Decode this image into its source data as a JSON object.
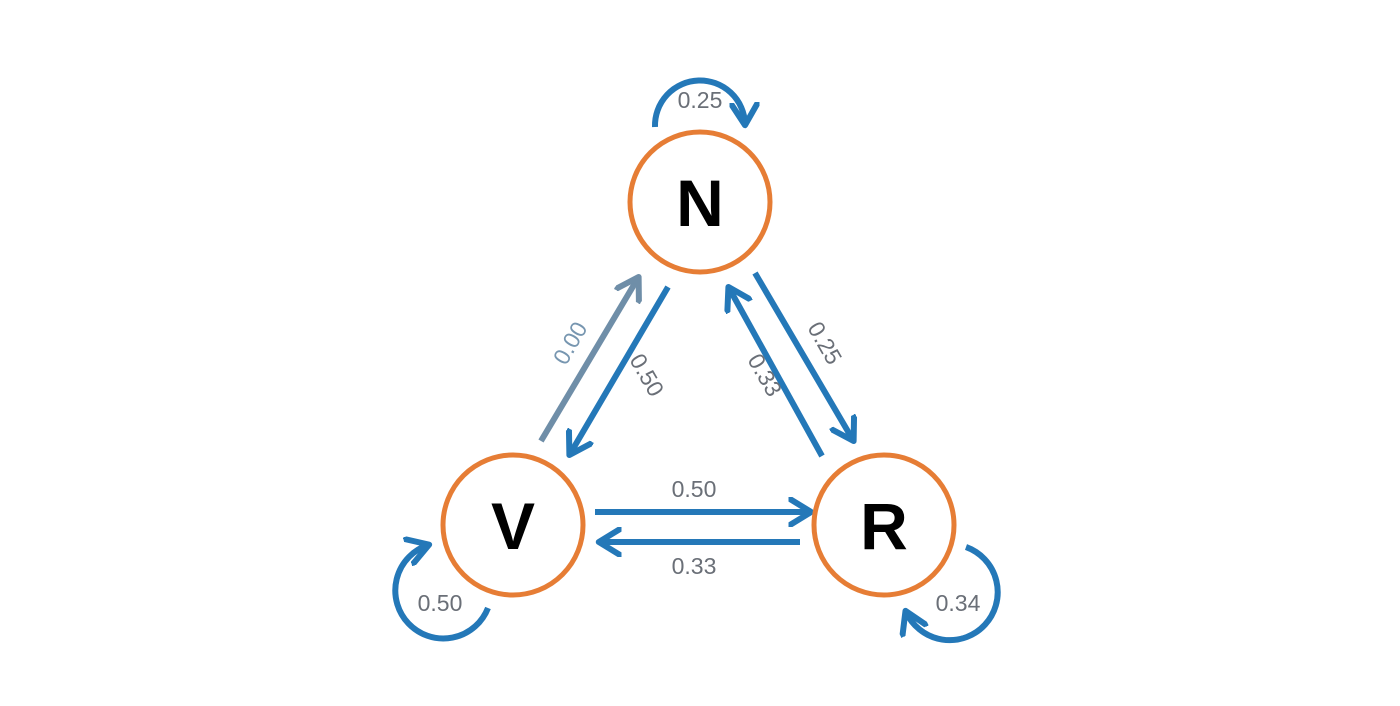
{
  "colors": {
    "edge": "#2478b8",
    "edge_zero": "#6f8ea8",
    "node_stroke": "#e67d35",
    "node_text": "#000000",
    "label_text": "#6a6f77",
    "label_zero": "#7796b0"
  },
  "nodes": {
    "n": {
      "label": "N"
    },
    "v": {
      "label": "V"
    },
    "r": {
      "label": "R"
    }
  },
  "edges": {
    "n_n": {
      "value": "0.25"
    },
    "v_v": {
      "value": "0.50"
    },
    "r_r": {
      "value": "0.34"
    },
    "n_v": {
      "value": "0.50"
    },
    "v_n": {
      "value": "0.00"
    },
    "n_r": {
      "value": "0.25"
    },
    "r_n": {
      "value": "0.33"
    },
    "v_r": {
      "value": "0.50"
    },
    "r_v": {
      "value": "0.33"
    }
  }
}
